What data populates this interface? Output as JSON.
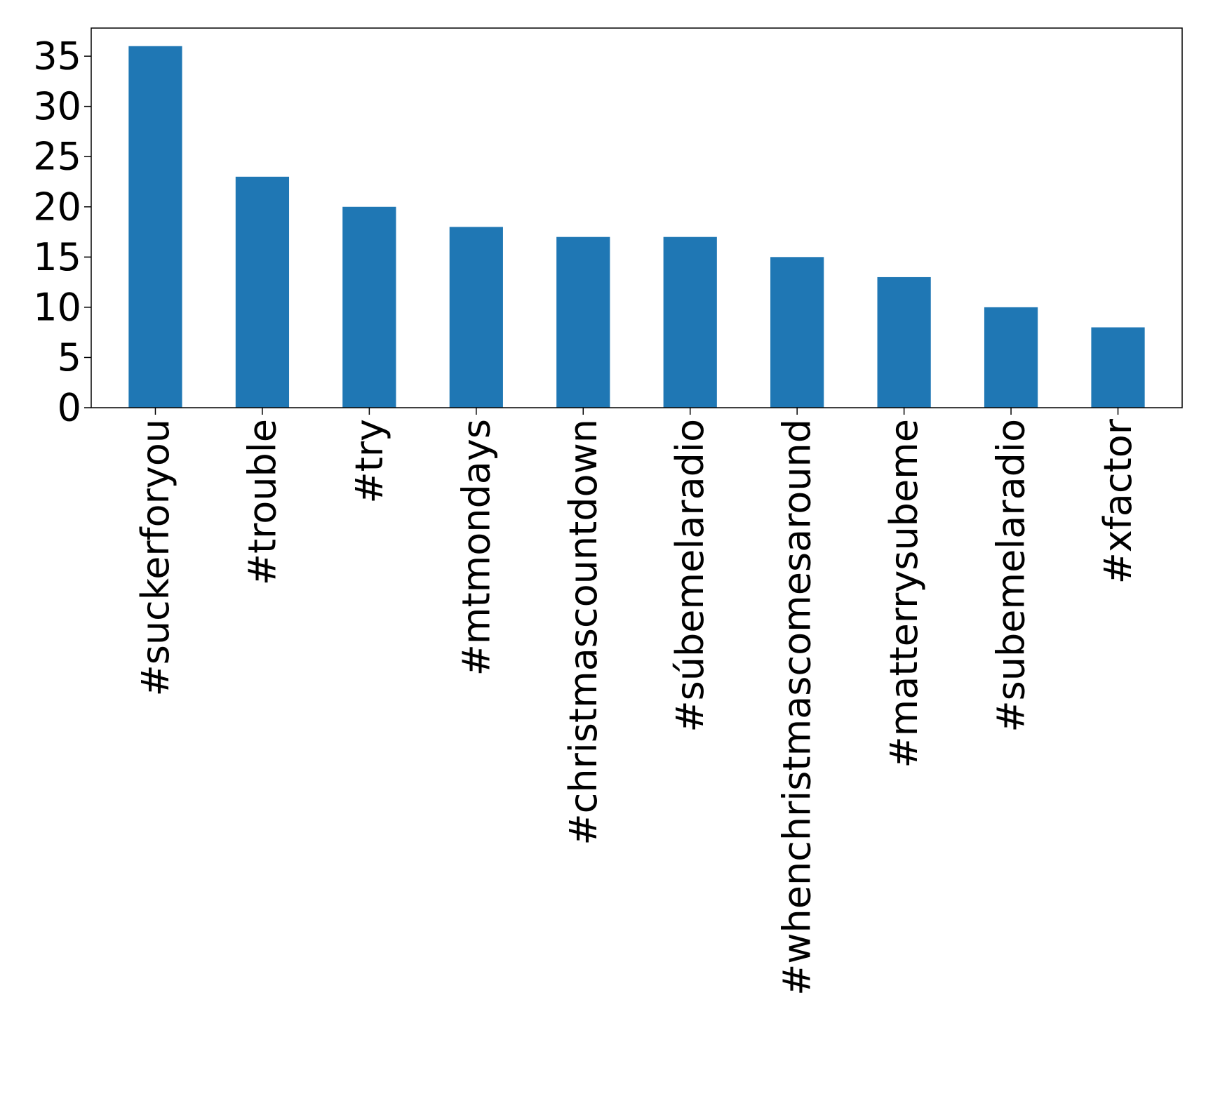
{
  "chart_data": {
    "type": "bar",
    "categories": [
      "#suckerforyou",
      "#trouble",
      "#try",
      "#mtmondays",
      "#christmascountdown",
      "#súbemelaradio",
      "#whenchristmascomesaround",
      "#matterrysubeme",
      "#subemelaradio",
      "#xfactor"
    ],
    "values": [
      36,
      23,
      20,
      18,
      17,
      17,
      15,
      13,
      10,
      8
    ],
    "title": "",
    "xlabel": "",
    "ylabel": "",
    "ylim": [
      0,
      37.8
    ],
    "yticks": [
      0,
      5,
      10,
      15,
      20,
      25,
      30,
      35
    ],
    "bar_color": "#1f77b4",
    "grid": false,
    "legend": "none"
  }
}
